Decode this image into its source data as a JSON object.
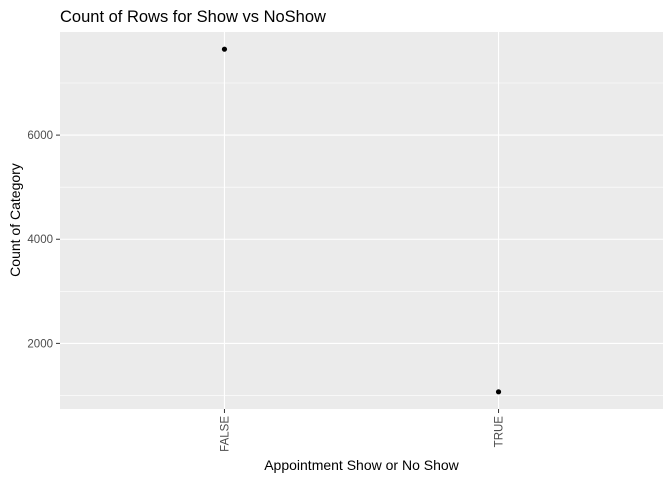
{
  "chart_data": {
    "type": "scatter",
    "title": "Count of Rows for Show vs NoShow",
    "xlabel": "Appointment Show or No Show",
    "ylabel": "Count of Category",
    "categories": [
      "FALSE",
      "TRUE"
    ],
    "series": [
      {
        "values": [
          7650,
          1070
        ]
      }
    ],
    "y_ticks": [
      2000,
      4000,
      6000
    ],
    "y_tick_labels": [
      "2000",
      "4000",
      "6000"
    ],
    "ylim": [
      740,
      7980
    ],
    "grid": true,
    "x_tick_label_rotation": "vertical",
    "colors": {
      "panel_background": "#ebebeb",
      "grid_line": "#ffffff",
      "point": "#000000",
      "tick_text": "#4d4d4d",
      "tick_mark": "#333333"
    }
  }
}
